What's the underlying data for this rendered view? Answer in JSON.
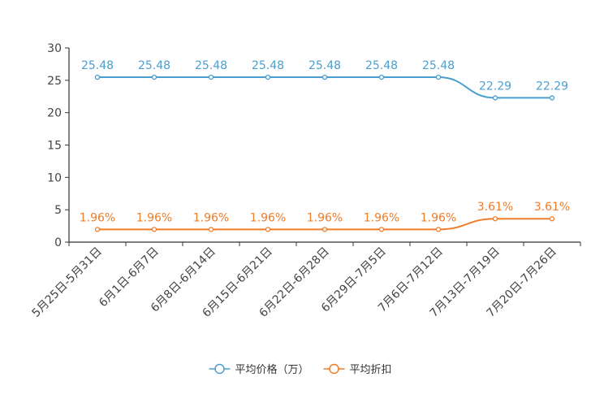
{
  "chart_data": {
    "type": "line",
    "categories": [
      "5月25日-5月31日",
      "6月1日-6月7日",
      "6月8日-6月14日",
      "6月15日-6月21日",
      "6月22日-6月28日",
      "6月29日-7月5日",
      "7月6日-7月12日",
      "7月13日-7月19日",
      "7月20日-7月26日"
    ],
    "ylim": [
      0,
      30
    ],
    "yticks": [
      0,
      5,
      10,
      15,
      20,
      25,
      30
    ],
    "series": [
      {
        "name": "平均价格（万）",
        "color": "#4a9fd0",
        "values": [
          25.48,
          25.48,
          25.48,
          25.48,
          25.48,
          25.48,
          25.48,
          22.29,
          22.29
        ],
        "labels": [
          "25.48",
          "25.48",
          "25.48",
          "25.48",
          "25.48",
          "25.48",
          "25.48",
          "22.29",
          "22.29"
        ]
      },
      {
        "name": "平均折扣",
        "color": "#f07c28",
        "values": [
          1.96,
          1.96,
          1.96,
          1.96,
          1.96,
          1.96,
          1.96,
          3.61,
          3.61
        ],
        "labels": [
          "1.96%",
          "1.96%",
          "1.96%",
          "1.96%",
          "1.96%",
          "1.96%",
          "1.96%",
          "3.61%",
          "3.61%"
        ]
      }
    ],
    "legend_position": "bottom-center"
  }
}
